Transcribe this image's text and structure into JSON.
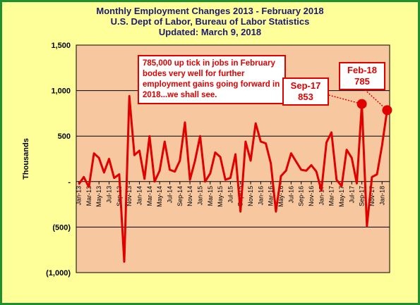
{
  "title_lines": [
    "Monthly Employment  Changes 2013 - February 2018",
    "U.S. Dept of Labor, Bureau of Labor Statistics",
    "Updated: March 9, 2018"
  ],
  "colors": {
    "frame": "#1f8f2f",
    "background": "#ffff99",
    "plot": "#f7c8a0",
    "line": "#e00000",
    "title": "#1b1b6e"
  },
  "annotations": {
    "main": "785,000 up tick in jobs in February bodes very well for further employment  gains going forward in 2018...we shall see.",
    "sep17_label": "Sep-17",
    "sep17_value": "853",
    "feb18_label": "Feb-18",
    "feb18_value": "785"
  },
  "chart_data": {
    "type": "line",
    "ylabel": "Thousands",
    "ylim": [
      -1000,
      1500
    ],
    "yticks": [
      1500,
      1000,
      500,
      0,
      -500,
      -1000
    ],
    "ytick_labels": [
      "1,500",
      "1,000",
      "500",
      "-",
      "(500)",
      "(1,000)"
    ],
    "grid": true,
    "xtick_labels": [
      "Jan-13",
      "Mar-13",
      "May-13",
      "Jul-13",
      "Sep-13",
      "Nov-13",
      "Jan-14",
      "Mar-14",
      "May-14",
      "Jul-14",
      "Sep-14",
      "Nov-14",
      "Jan-15",
      "Mar-15",
      "May-15",
      "Jul-15",
      "Sep-15",
      "Nov-15",
      "Jan-16",
      "Mar-16",
      "May-16",
      "Jul-16",
      "Sep-16",
      "Nov-16",
      "Jan-17",
      "Mar-17",
      "May-17",
      "Jul-17",
      "Sep-17",
      "Nov-17",
      "Jan-18"
    ],
    "series": [
      {
        "values": [
          -30,
          50,
          -60,
          310,
          260,
          100,
          250,
          40,
          80,
          -880,
          940,
          290,
          340,
          30,
          500,
          0,
          120,
          440,
          130,
          110,
          230,
          650,
          20,
          230,
          500,
          0,
          90,
          320,
          270,
          20,
          40,
          300,
          -330,
          440,
          230,
          640,
          440,
          420,
          200,
          -330,
          60,
          120,
          310,
          220,
          130,
          120,
          180,
          110,
          -100,
          430,
          540,
          20,
          -50,
          350,
          260,
          -20,
          853,
          -490,
          50,
          80,
          400,
          785
        ]
      }
    ],
    "highlights": [
      {
        "label": "Sep-17",
        "value": 853
      },
      {
        "label": "Feb-18",
        "value": 785
      }
    ]
  }
}
